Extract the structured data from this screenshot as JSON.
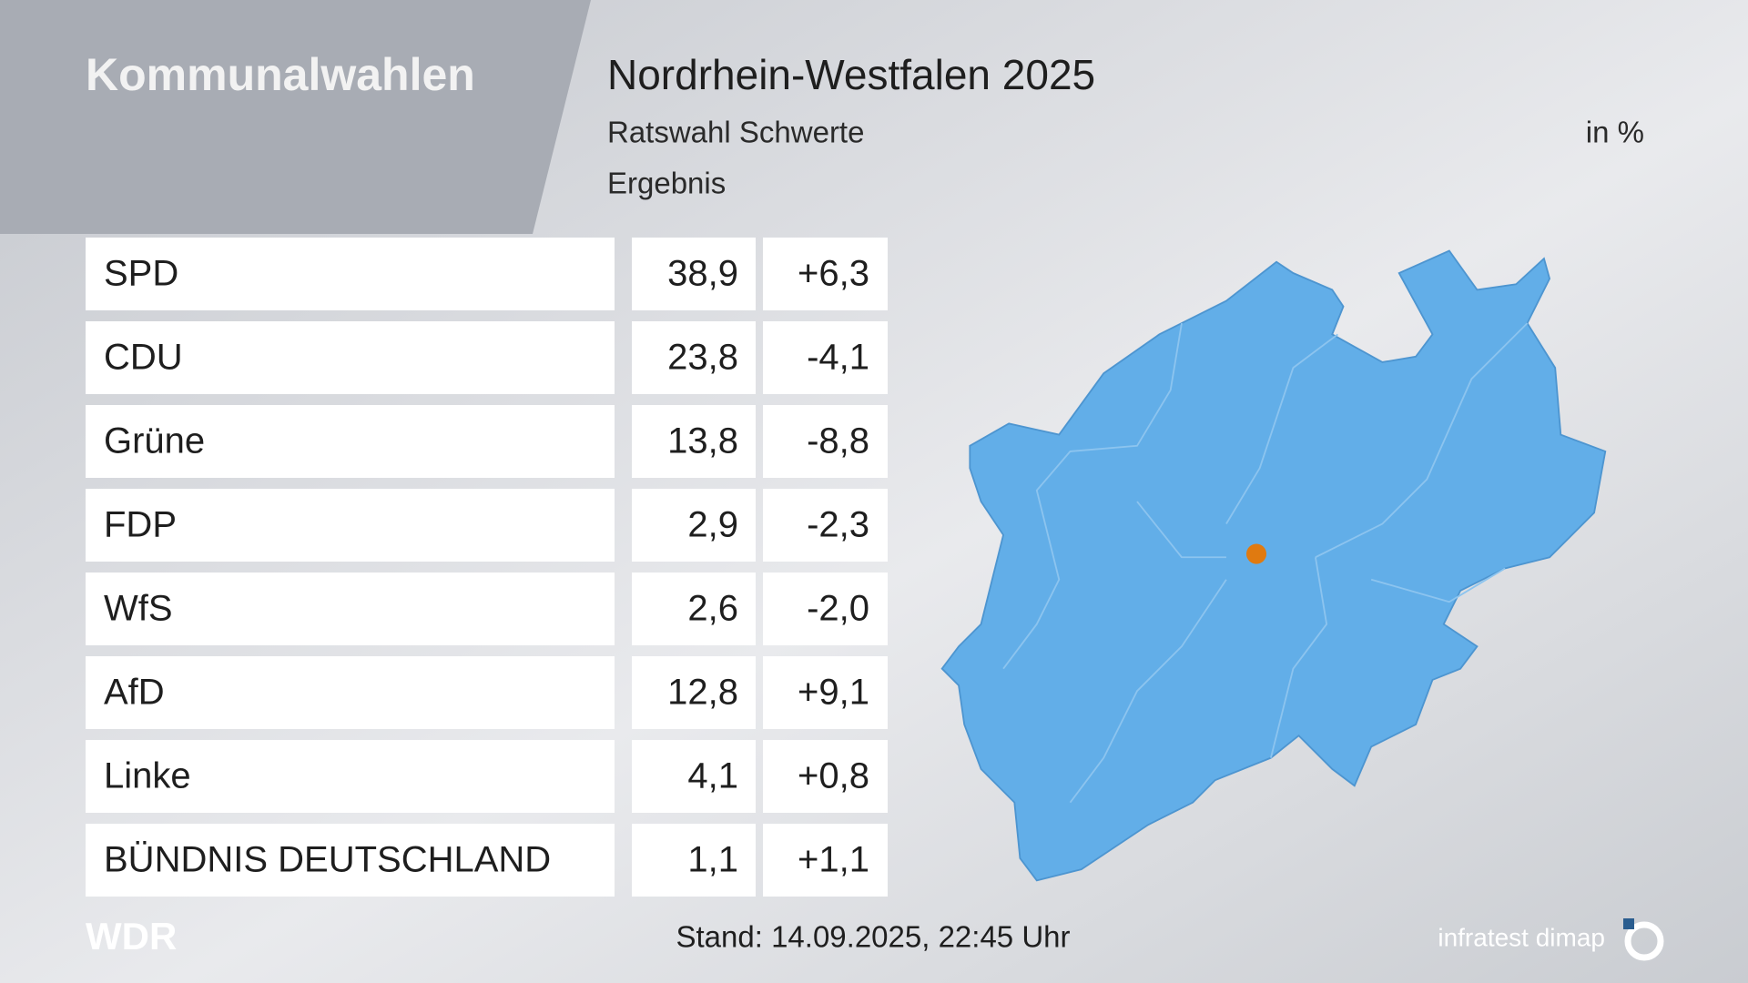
{
  "header": {
    "section": "Kommunalwahlen",
    "title": "Nordrhein-Westfalen 2025",
    "subtitle": "Ratswahl Schwerte",
    "unit": "in %",
    "label": "Ergebnis"
  },
  "table": {
    "rows": [
      [
        "SPD",
        "38,9",
        "+6,3"
      ],
      [
        "CDU",
        "23,8",
        "-4,1"
      ],
      [
        "Grüne",
        "13,8",
        "-8,8"
      ],
      [
        "FDP",
        "2,9",
        "-2,3"
      ],
      [
        "WfS",
        "2,6",
        "-2,0"
      ],
      [
        "AfD",
        "12,8",
        "+9,1"
      ],
      [
        "Linke",
        "4,1",
        "+0,8"
      ],
      [
        "BÜNDNIS DEUTSCHLAND",
        "1,1",
        "+1,1"
      ]
    ]
  },
  "footer": {
    "logo": "WDR",
    "stand": "Stand: 14.09.2025, 22:45 Uhr",
    "source": "infratest dimap"
  }
}
